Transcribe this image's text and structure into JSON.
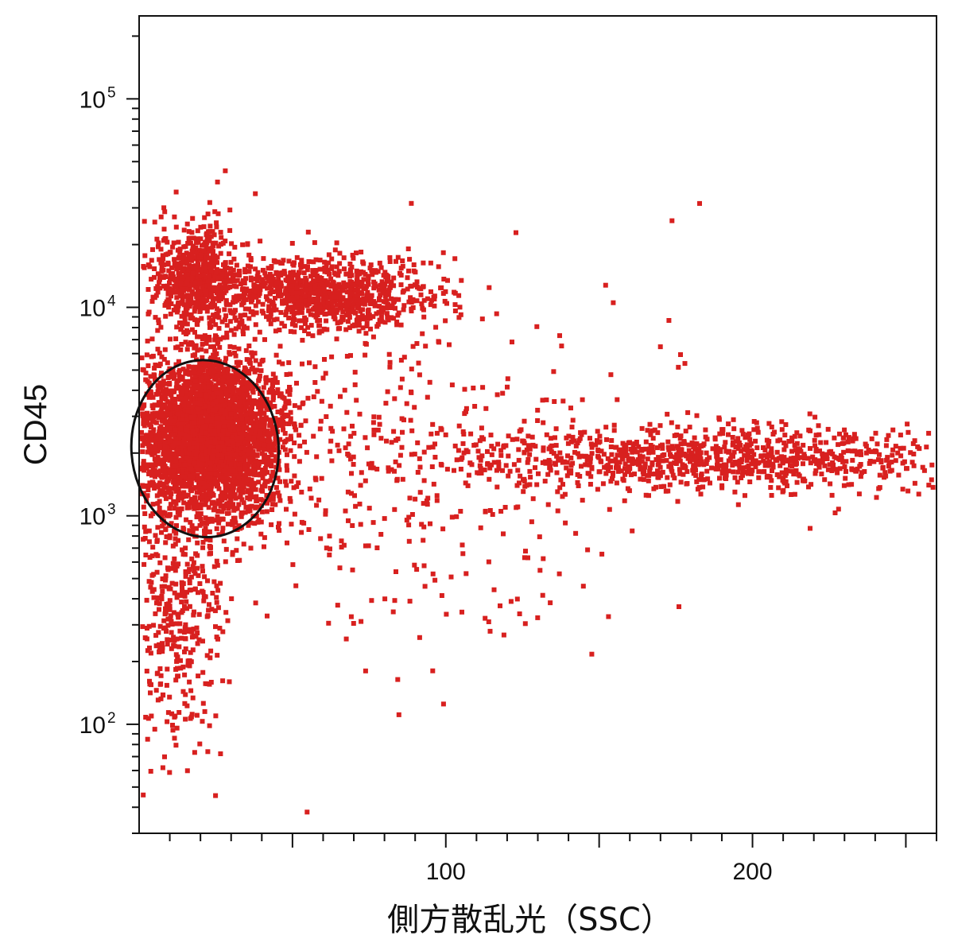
{
  "colors": {
    "points": "#d8201f",
    "axis": "#111111",
    "gate": "#111111",
    "background": "#ffffff"
  },
  "chart_data": {
    "type": "scatter",
    "xlabel": "側方散乱光（SSC）",
    "ylabel": "CD45",
    "x_scale": "linear",
    "y_scale": "log",
    "xlim": [
      0,
      260
    ],
    "ylim": [
      30,
      250000
    ],
    "x_ticks": [
      {
        "value": 100,
        "label": "100"
      },
      {
        "value": 200,
        "label": "200"
      }
    ],
    "y_ticks": [
      {
        "value": 100,
        "base": "10",
        "exp": "2"
      },
      {
        "value": 1000,
        "base": "10",
        "exp": "3"
      },
      {
        "value": 10000,
        "base": "10",
        "exp": "4"
      },
      {
        "value": 100000,
        "base": "10",
        "exp": "5"
      }
    ],
    "x_minor_step": 10,
    "grid": false,
    "populations": [
      {
        "x_center": 23,
        "y_center": 2400,
        "x_spread": 12,
        "y_log_spread": 0.19,
        "count": 3400
      },
      {
        "x_center": 18,
        "y_center": 14000,
        "x_spread": 7,
        "y_log_spread": 0.12,
        "count": 650
      },
      {
        "x_center": 60,
        "y_center": 11500,
        "x_spread": 17,
        "y_log_spread": 0.09,
        "count": 950
      },
      {
        "x_center": 185,
        "y_center": 1900,
        "x_spread": 42,
        "y_log_spread": 0.08,
        "count": 1000
      },
      {
        "x_center": 12,
        "y_center": 330,
        "x_spread": 8,
        "y_log_spread": 0.33,
        "count": 380
      },
      {
        "x_center": 85,
        "y_center": 1500,
        "x_spread": 45,
        "y_log_spread": 0.45,
        "count": 420
      }
    ],
    "gate": {
      "shape": "ellipse",
      "x_center": 21.5,
      "y_center": 2100,
      "x_radius": 24,
      "y_log_radius": 0.425
    }
  }
}
